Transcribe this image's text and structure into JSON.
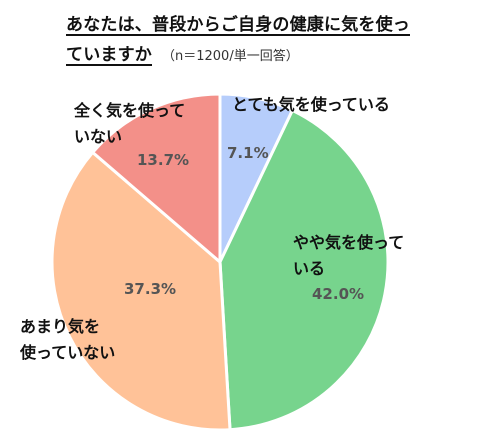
{
  "title": {
    "line1": "あなたは、普段からご自身の健康に気を使っ",
    "line2": "ていますか",
    "note": "（n＝1200/単一回答）"
  },
  "colors": {
    "very_careful": "#b6cdfb",
    "somewhat_careful": "#77d48d",
    "not_very_careful": "#ffc298",
    "not_at_all": "#f39089",
    "pct_text": "#555555"
  },
  "chart_data": {
    "type": "pie",
    "categories": [
      "とても気を使っている",
      "やや気を使っている",
      "あまり気を使っていない",
      "全く気を使っていない"
    ],
    "values": [
      7.1,
      42.0,
      37.3,
      13.7
    ],
    "value_labels": [
      "7.1%",
      "42.0%",
      "37.3%",
      "13.7%"
    ],
    "label_lines": [
      [
        "とても気を使っている"
      ],
      [
        "やや気を使って",
        "いる"
      ],
      [
        "あまり気を",
        "使っていない"
      ],
      [
        "全く気を使って",
        "いない"
      ]
    ],
    "start": "12 o'clock",
    "direction": "clockwise",
    "legend": "none"
  }
}
